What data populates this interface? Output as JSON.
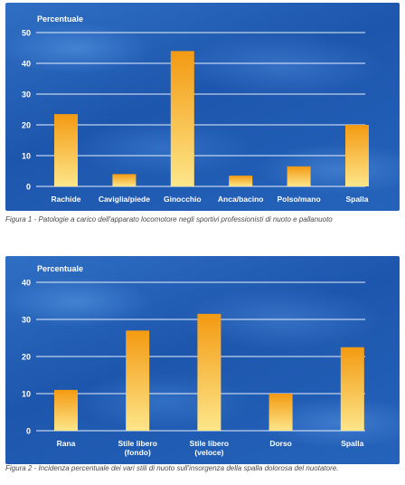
{
  "chart_data": [
    {
      "type": "bar",
      "ylabel": "Percentuale",
      "ylim": [
        0,
        50
      ],
      "yticks": [
        0,
        10,
        20,
        30,
        40,
        50
      ],
      "categories": [
        "Rachide",
        "Caviglia/piede",
        "Ginocchio",
        "Anca/bacino",
        "Polso/mano",
        "Spalla"
      ],
      "values": [
        23.5,
        4,
        44,
        3.5,
        6.5,
        20
      ],
      "grid": true,
      "caption": "Figura 1 - Patologie a carico dell'apparato locomotore negli sportivi professionisti di nuoto e pallanuoto"
    },
    {
      "type": "bar",
      "ylabel": "Percentuale",
      "ylim": [
        0,
        40
      ],
      "yticks": [
        0,
        10,
        20,
        30,
        40
      ],
      "categories": [
        "Rana",
        "Stile libero (fondo)",
        "Stile libero (veloce)",
        "Dorso",
        "Spalla"
      ],
      "values": [
        11,
        27,
        31.5,
        10,
        22.5
      ],
      "grid": true,
      "caption": "Figura 2 - Incidenza percentuale dei vari stili di nuoto sull'insorgenza della spalla dolorosa del nuotatore."
    }
  ],
  "colors": {
    "bar_top": "#f39a12",
    "bar_bottom": "#fde68a",
    "gridline": "#e6eefc",
    "text": "#ffffff",
    "background": "#2563bb"
  }
}
